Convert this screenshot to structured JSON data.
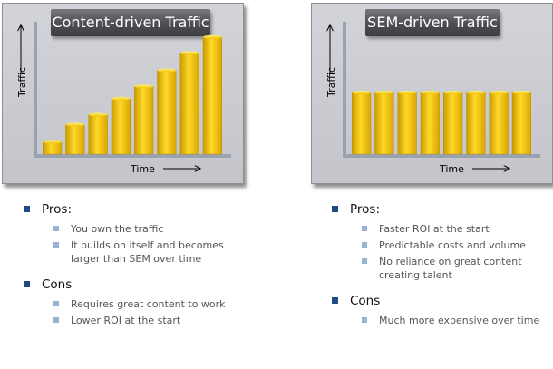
{
  "chart_data": [
    {
      "type": "bar",
      "title": "Content-driven Traffic",
      "xlabel": "Time",
      "ylabel": "Traffic",
      "values": [
        1,
        2.4,
        3.2,
        4.5,
        5.5,
        6.8,
        8.2,
        9.5
      ],
      "ylim": [
        0,
        10
      ],
      "grid": false,
      "color": "#f2c40a"
    },
    {
      "type": "bar",
      "title": "SEM-driven Traffic",
      "xlabel": "Time",
      "ylabel": "Traffic",
      "values": [
        5,
        5,
        5,
        5,
        5,
        5,
        5,
        5
      ],
      "ylim": [
        0,
        10
      ],
      "grid": false,
      "color": "#f2c40a"
    }
  ],
  "left_list": {
    "pros_label": "Pros:",
    "pros": [
      "You own the traffic",
      "It builds on itself and becomes larger than SEM over time"
    ],
    "cons_label": "Cons",
    "cons": [
      "Requires great content to work",
      "Lower ROI at the start"
    ]
  },
  "right_list": {
    "pros_label": "Pros:",
    "pros": [
      "Faster ROI at the start",
      "Predictable costs and volume",
      "No reliance on great content creating talent"
    ],
    "cons_label": "Cons",
    "cons": [
      "Much more expensive over time"
    ]
  },
  "colors": {
    "bar": "#f2c40a",
    "panel": "#c8cacf",
    "title_bg": "#4e5054",
    "bullet": "#1f4a84",
    "sub_bullet": "#9ab3d4"
  }
}
